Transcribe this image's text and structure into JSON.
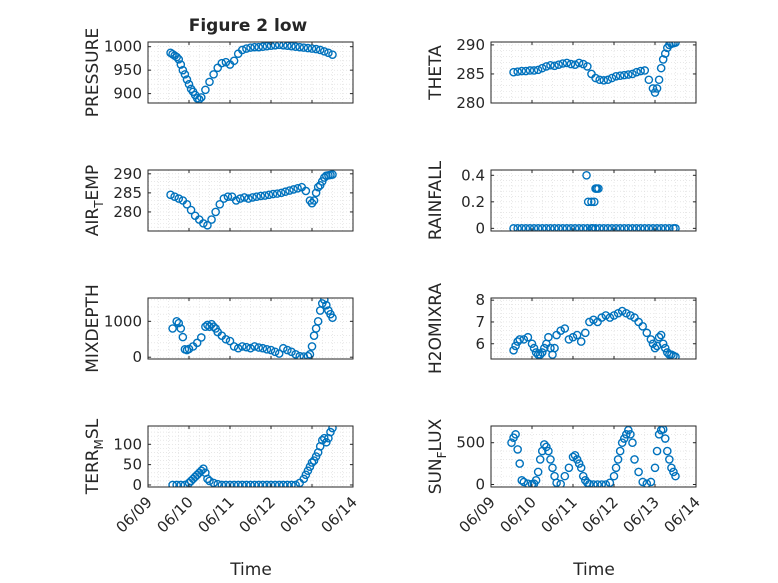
{
  "figure": {
    "title": "Figure 2 low",
    "xlabel": "Time"
  },
  "colors": {
    "marker": "#0072BD",
    "axis": "#262626",
    "grid": "#d9d9d9"
  },
  "chart_data": [
    {
      "type": "scatter",
      "id": "pressure",
      "ylabel": "PRESSURE",
      "ylim": [
        880,
        1010
      ],
      "yticks": [
        {
          "v": 900,
          "t": "900"
        },
        {
          "v": 950,
          "t": "950"
        },
        {
          "v": 1000,
          "t": "1000"
        }
      ],
      "xticklabels": false,
      "x": [
        9.55,
        9.6,
        9.65,
        9.7,
        9.75,
        9.8,
        9.85,
        9.9,
        9.95,
        10.0,
        10.05,
        10.1,
        10.15,
        10.2,
        10.25,
        10.3,
        10.4,
        10.5,
        10.6,
        10.7,
        10.8,
        10.9,
        11.0,
        11.1,
        11.2,
        11.3,
        11.4,
        11.5,
        11.6,
        11.7,
        11.8,
        11.9,
        12.0,
        12.1,
        12.2,
        12.3,
        12.4,
        12.5,
        12.6,
        12.7,
        12.8,
        12.9,
        13.0,
        13.1,
        13.2,
        13.3,
        13.4,
        13.5
      ],
      "y": [
        987,
        984,
        981,
        978,
        973,
        962,
        950,
        941,
        930,
        920,
        910,
        904,
        897,
        890,
        888,
        892,
        908,
        925,
        941,
        955,
        965,
        967,
        962,
        970,
        985,
        993,
        996,
        998,
        999,
        999,
        1000,
        1001,
        1002,
        1003,
        1004,
        1003,
        1002,
        1001,
        1000,
        999,
        998,
        997,
        996,
        995,
        993,
        990,
        987,
        983
      ]
    },
    {
      "type": "scatter",
      "id": "theta",
      "ylabel": "THETA",
      "ylim": [
        280,
        290.5
      ],
      "yticks": [
        {
          "v": 280,
          "t": "280"
        },
        {
          "v": 285,
          "t": "285"
        },
        {
          "v": 290,
          "t": "290"
        }
      ],
      "xticklabels": false,
      "x": [
        9.55,
        9.65,
        9.75,
        9.85,
        9.95,
        10.05,
        10.15,
        10.25,
        10.35,
        10.45,
        10.55,
        10.65,
        10.75,
        10.85,
        10.95,
        11.05,
        11.15,
        11.25,
        11.35,
        11.45,
        11.55,
        11.65,
        11.75,
        11.85,
        11.95,
        12.05,
        12.15,
        12.25,
        12.35,
        12.45,
        12.55,
        12.65,
        12.75,
        12.85,
        12.95,
        13.0,
        13.05,
        13.1,
        13.15,
        13.2,
        13.25,
        13.3,
        13.35,
        13.4,
        13.45,
        13.5
      ],
      "y": [
        285.3,
        285.4,
        285.5,
        285.5,
        285.6,
        285.6,
        285.7,
        286.0,
        286.3,
        286.5,
        286.4,
        286.6,
        286.8,
        286.9,
        286.7,
        286.6,
        286.9,
        286.7,
        286.3,
        285.0,
        284.3,
        284.0,
        283.9,
        284.0,
        284.3,
        284.6,
        284.7,
        284.8,
        284.9,
        285.0,
        285.3,
        285.5,
        285.6,
        284.0,
        282.5,
        281.8,
        282.5,
        284.0,
        286.0,
        287.5,
        288.5,
        289.5,
        290.0,
        290.2,
        290.3,
        290.4
      ]
    },
    {
      "type": "scatter",
      "id": "air_temp",
      "ylabel": "AIR",
      "ylabel_sub": "T",
      "ylabel_rest": "EMP",
      "ylim": [
        275,
        291
      ],
      "yticks": [
        {
          "v": 280,
          "t": "280"
        },
        {
          "v": 285,
          "t": "285"
        },
        {
          "v": 290,
          "t": "290"
        }
      ],
      "xticklabels": false,
      "x": [
        9.55,
        9.65,
        9.75,
        9.85,
        9.95,
        10.05,
        10.15,
        10.25,
        10.35,
        10.45,
        10.55,
        10.65,
        10.75,
        10.85,
        10.95,
        11.05,
        11.15,
        11.25,
        11.35,
        11.45,
        11.55,
        11.65,
        11.75,
        11.85,
        11.95,
        12.05,
        12.15,
        12.25,
        12.35,
        12.45,
        12.55,
        12.65,
        12.75,
        12.85,
        12.95,
        13.0,
        13.05,
        13.1,
        13.15,
        13.2,
        13.25,
        13.3,
        13.35,
        13.4,
        13.45,
        13.5
      ],
      "y": [
        284.5,
        284.0,
        283.5,
        283.0,
        282.0,
        280.5,
        279.0,
        278.0,
        277.0,
        276.5,
        278.0,
        280.0,
        282.0,
        283.5,
        284.0,
        284.0,
        283.0,
        283.5,
        283.8,
        283.5,
        283.8,
        284.0,
        284.2,
        284.3,
        284.5,
        284.7,
        284.8,
        285.0,
        285.3,
        285.6,
        285.9,
        286.2,
        286.5,
        285.5,
        283.0,
        282.3,
        283.0,
        285.0,
        286.5,
        287.0,
        288.0,
        289.0,
        289.5,
        289.6,
        289.7,
        289.8
      ]
    },
    {
      "type": "scatter",
      "id": "rainfall",
      "ylabel": "RAINFALL",
      "ylim": [
        -0.02,
        0.44
      ],
      "yticks": [
        {
          "v": 0,
          "t": "0"
        },
        {
          "v": 0.2,
          "t": "0.2"
        },
        {
          "v": 0.4,
          "t": "0.4"
        }
      ],
      "xticklabels": false,
      "x": [
        9.55,
        9.65,
        9.75,
        9.85,
        9.95,
        10.05,
        10.15,
        10.25,
        10.35,
        10.45,
        10.55,
        10.65,
        10.75,
        10.85,
        10.95,
        11.05,
        11.15,
        11.25,
        11.35,
        11.45,
        11.55,
        11.65,
        11.75,
        11.85,
        11.95,
        12.05,
        12.15,
        12.25,
        12.35,
        12.45,
        12.55,
        12.65,
        12.75,
        12.85,
        12.95,
        13.05,
        13.15,
        13.25,
        13.35,
        13.45,
        13.5,
        11.33,
        11.37,
        11.45,
        11.52,
        11.55,
        11.58,
        11.62,
        11.48
      ],
      "y": [
        0,
        0,
        0,
        0,
        0,
        0,
        0,
        0,
        0,
        0,
        0,
        0,
        0,
        0,
        0,
        0,
        0,
        0,
        0,
        0,
        0,
        0,
        0,
        0,
        0,
        0,
        0,
        0,
        0,
        0,
        0,
        0,
        0,
        0,
        0,
        0,
        0,
        0,
        0,
        0,
        0,
        0.4,
        0.2,
        0.2,
        0.2,
        0.3,
        0.3,
        0.3,
        0
      ]
    },
    {
      "type": "scatter",
      "id": "mixdepth",
      "ylabel": "MIXDEPTH",
      "ylim": [
        -50,
        1650
      ],
      "yticks": [
        {
          "v": 0,
          "t": "0"
        },
        {
          "v": 1000,
          "t": "1000"
        }
      ],
      "xticklabels": false,
      "x": [
        9.6,
        9.7,
        9.75,
        9.8,
        9.85,
        9.9,
        9.95,
        10.0,
        10.1,
        10.2,
        10.3,
        10.4,
        10.45,
        10.5,
        10.55,
        10.6,
        10.65,
        10.7,
        10.8,
        10.9,
        11.0,
        11.1,
        11.2,
        11.3,
        11.4,
        11.5,
        11.6,
        11.7,
        11.8,
        11.9,
        12.0,
        12.1,
        12.2,
        12.3,
        12.4,
        12.5,
        12.6,
        12.7,
        12.8,
        12.9,
        12.95,
        13.0,
        13.05,
        13.1,
        13.15,
        13.2,
        13.25,
        13.3,
        13.35,
        13.4,
        13.45,
        13.5
      ],
      "y": [
        800,
        1000,
        950,
        800,
        560,
        220,
        200,
        230,
        300,
        400,
        550,
        850,
        900,
        850,
        920,
        850,
        800,
        700,
        600,
        500,
        450,
        300,
        250,
        300,
        280,
        250,
        300,
        270,
        250,
        220,
        200,
        150,
        100,
        250,
        200,
        150,
        80,
        30,
        20,
        30,
        80,
        300,
        600,
        800,
        1000,
        1300,
        1500,
        1600,
        1450,
        1300,
        1200,
        1100
      ]
    },
    {
      "type": "scatter",
      "id": "h2omixra",
      "ylabel": "H2OMIXRA",
      "ylim": [
        5.3,
        8.1
      ],
      "yticks": [
        {
          "v": 6,
          "t": "6"
        },
        {
          "v": 7,
          "t": "7"
        },
        {
          "v": 8,
          "t": "8"
        }
      ],
      "xticklabels": false,
      "x": [
        9.55,
        9.6,
        9.65,
        9.7,
        9.8,
        9.9,
        10.0,
        10.05,
        10.1,
        10.15,
        10.2,
        10.25,
        10.3,
        10.35,
        10.4,
        10.45,
        10.5,
        10.55,
        10.6,
        10.7,
        10.8,
        10.9,
        11.0,
        11.1,
        11.2,
        11.3,
        11.4,
        11.5,
        11.6,
        11.7,
        11.8,
        11.9,
        12.0,
        12.1,
        12.2,
        12.3,
        12.4,
        12.5,
        12.6,
        12.7,
        12.8,
        12.9,
        12.95,
        13.0,
        13.05,
        13.1,
        13.15,
        13.2,
        13.25,
        13.3,
        13.35,
        13.4,
        13.45,
        13.5
      ],
      "y": [
        5.7,
        5.9,
        6.1,
        6.2,
        6.2,
        6.3,
        6.0,
        5.8,
        5.6,
        5.5,
        5.5,
        5.6,
        5.8,
        6.0,
        6.3,
        5.8,
        5.5,
        5.8,
        6.4,
        6.6,
        6.7,
        6.2,
        6.3,
        6.4,
        6.1,
        6.5,
        7.0,
        7.1,
        7.0,
        7.2,
        7.3,
        7.2,
        7.3,
        7.4,
        7.5,
        7.4,
        7.3,
        7.2,
        7.0,
        6.8,
        6.5,
        6.2,
        6.0,
        5.8,
        5.9,
        6.3,
        6.4,
        6.0,
        5.8,
        5.6,
        5.5,
        5.5,
        5.45,
        5.4
      ]
    },
    {
      "type": "scatter",
      "id": "terr_msl",
      "ylabel": "TERR",
      "ylabel_sub": "M",
      "ylabel_rest": "SL",
      "ylim": [
        -5,
        145
      ],
      "yticks": [
        {
          "v": 0,
          "t": "0"
        },
        {
          "v": 50,
          "t": "50"
        },
        {
          "v": 100,
          "t": "100"
        }
      ],
      "xticklabels": true,
      "x": [
        9.6,
        9.7,
        9.8,
        9.9,
        10.0,
        10.05,
        10.1,
        10.15,
        10.2,
        10.25,
        10.3,
        10.35,
        10.4,
        10.45,
        10.5,
        10.6,
        10.7,
        10.8,
        10.9,
        11.0,
        11.1,
        11.2,
        11.3,
        11.4,
        11.5,
        11.6,
        11.7,
        11.8,
        11.9,
        12.0,
        12.1,
        12.2,
        12.3,
        12.4,
        12.5,
        12.6,
        12.7,
        12.8,
        12.85,
        12.9,
        12.95,
        13.0,
        13.05,
        13.1,
        13.15,
        13.2,
        13.25,
        13.3,
        13.35,
        13.4,
        13.45,
        13.5
      ],
      "y": [
        0,
        0,
        0,
        0,
        5,
        10,
        15,
        20,
        25,
        30,
        35,
        40,
        30,
        15,
        10,
        5,
        2,
        0,
        0,
        0,
        0,
        0,
        0,
        0,
        0,
        0,
        0,
        0,
        0,
        0,
        0,
        0,
        0,
        0,
        0,
        0,
        5,
        15,
        25,
        35,
        45,
        55,
        60,
        70,
        80,
        95,
        110,
        115,
        105,
        115,
        130,
        140
      ]
    },
    {
      "type": "scatter",
      "id": "sun_flux",
      "ylabel": "SUN",
      "ylabel_sub": "F",
      "ylabel_rest": "LUX",
      "ylim": [
        -30,
        700
      ],
      "yticks": [
        {
          "v": 0,
          "t": "0"
        },
        {
          "v": 500,
          "t": "500"
        }
      ],
      "xticklabels": true,
      "x": [
        9.5,
        9.55,
        9.6,
        9.65,
        9.7,
        9.75,
        9.8,
        9.9,
        10.0,
        10.05,
        10.1,
        10.15,
        10.2,
        10.25,
        10.3,
        10.35,
        10.4,
        10.45,
        10.5,
        10.55,
        10.6,
        10.7,
        10.8,
        10.9,
        11.0,
        11.05,
        11.1,
        11.15,
        11.2,
        11.25,
        11.3,
        11.35,
        11.4,
        11.5,
        11.6,
        11.7,
        11.8,
        11.9,
        12.0,
        12.05,
        12.1,
        12.15,
        12.2,
        12.25,
        12.3,
        12.35,
        12.4,
        12.45,
        12.5,
        12.6,
        12.7,
        12.8,
        12.9,
        13.0,
        13.05,
        13.1,
        13.15,
        13.2,
        13.25,
        13.3,
        13.35,
        13.4,
        13.45,
        13.5
      ],
      "y": [
        500,
        560,
        600,
        420,
        250,
        50,
        30,
        10,
        5,
        10,
        50,
        150,
        300,
        400,
        480,
        450,
        400,
        300,
        200,
        100,
        20,
        5,
        100,
        200,
        330,
        350,
        300,
        250,
        200,
        100,
        50,
        20,
        5,
        0,
        0,
        0,
        0,
        20,
        100,
        200,
        300,
        400,
        500,
        550,
        600,
        650,
        600,
        500,
        300,
        150,
        30,
        10,
        30,
        200,
        400,
        600,
        650,
        660,
        550,
        400,
        300,
        200,
        150,
        100
      ]
    }
  ]
}
